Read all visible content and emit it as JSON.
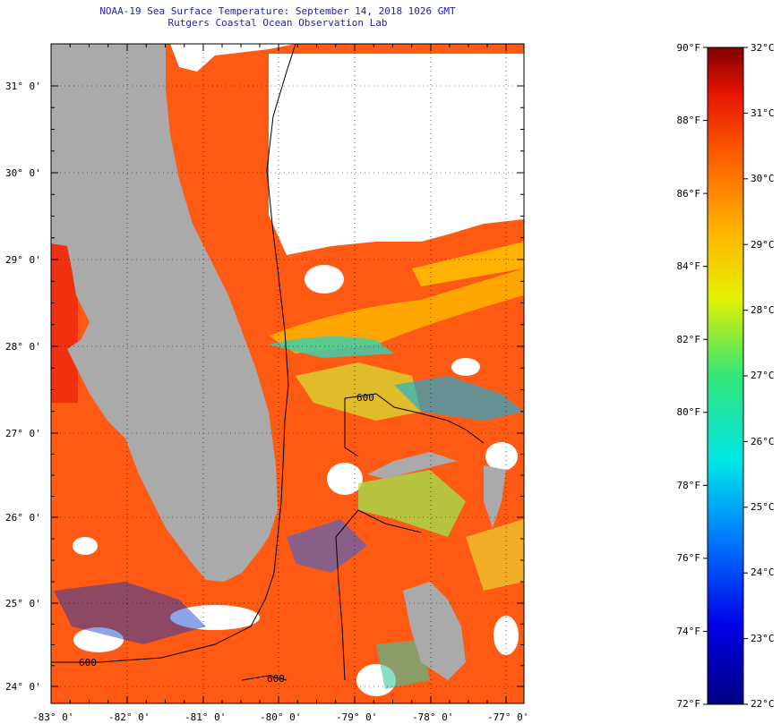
{
  "header": {
    "title": "NOAA-19 Sea Surface Temperature:  September 14, 2018 1026 GMT",
    "subtitle": "Rutgers Coastal Ocean Observation Lab"
  },
  "map": {
    "lat_labels": [
      "31° 0'",
      "30° 0'",
      "29° 0'",
      "28° 0'",
      "27° 0'",
      "26° 0'",
      "25° 0'",
      "24° 0'"
    ],
    "lon_labels": [
      "-83° 0'",
      "-82° 0'",
      "-81° 0'",
      "-80° 0'",
      "-79° 0'",
      "-78° 0'",
      "-77° 0'"
    ],
    "contour_labels": [
      "600",
      "600",
      "600"
    ],
    "colors": {
      "land": "#aaaaaa",
      "cloud": "#ffffff",
      "warm": "#ff5a14"
    }
  },
  "colorbar": {
    "f_labels": [
      "90°F",
      "88°F",
      "86°F",
      "84°F",
      "82°F",
      "80°F",
      "78°F",
      "76°F",
      "74°F",
      "72°F"
    ],
    "c_labels": [
      "32°C",
      "31°C",
      "30°C",
      "29°C",
      "28°C",
      "27°C",
      "26°C",
      "25°C",
      "24°C",
      "23°C",
      "22°C"
    ]
  }
}
